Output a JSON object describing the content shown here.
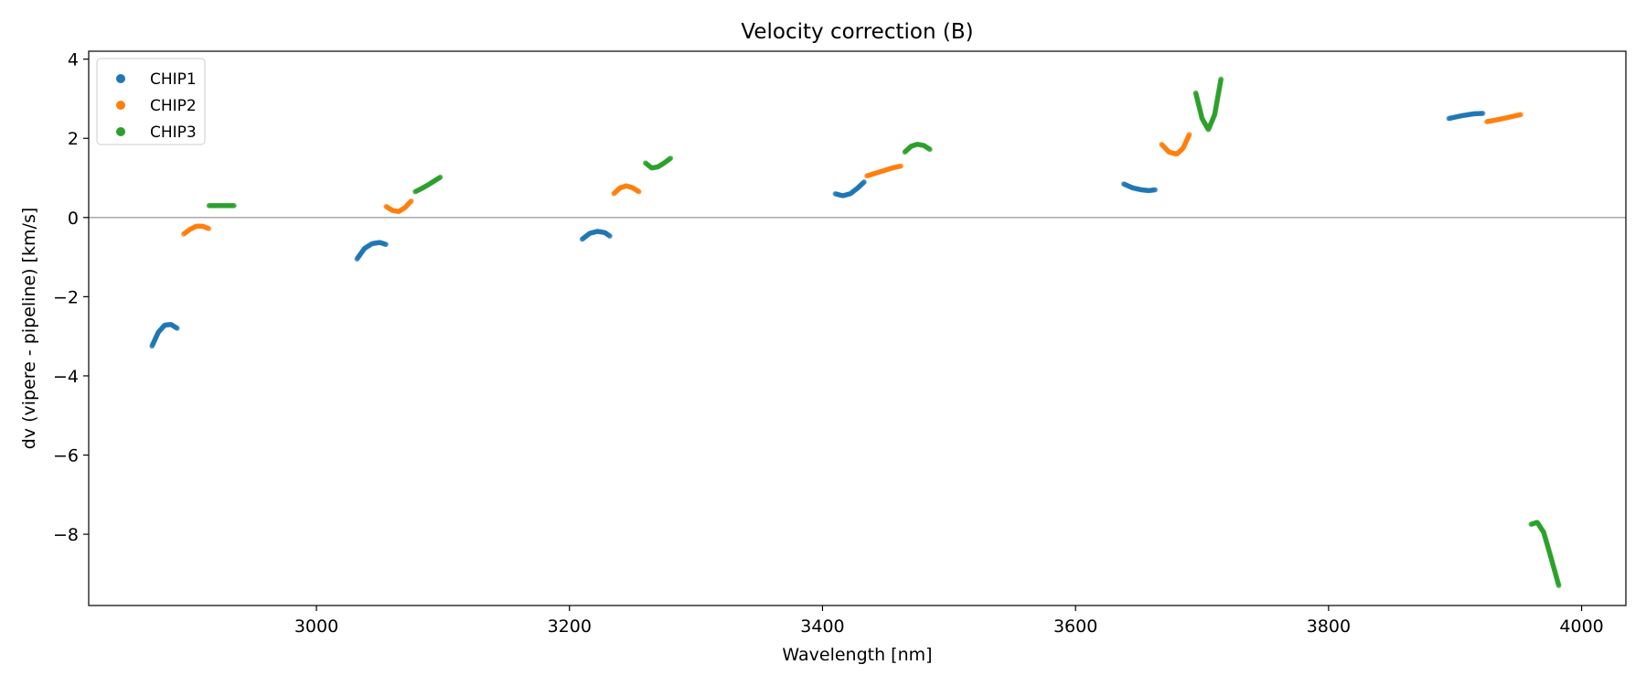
{
  "chart_data": {
    "type": "scatter",
    "title": "Velocity correction (B)",
    "xlabel": "Wavelength [nm]",
    "ylabel": "dv (vipere - pipeline) [km/s]",
    "xlim": [
      2820,
      4035
    ],
    "ylim": [
      -9.8,
      4.2
    ],
    "xticks": [
      3000,
      3200,
      3400,
      3600,
      3800,
      4000
    ],
    "yticks": [
      4,
      2,
      0,
      -2,
      -4,
      -6,
      -8
    ],
    "ytick_labels": [
      "4",
      "2",
      "0",
      "−2",
      "−4",
      "−6",
      "−8"
    ],
    "grid": false,
    "reference_line_y": 0,
    "legend_position": "top-left",
    "series": [
      {
        "name": "CHIP1",
        "color": "#1f77b4",
        "segments": [
          {
            "x": [
              2870,
              2875,
              2880,
              2885,
              2890
            ],
            "y": [
              -3.25,
              -2.9,
              -2.72,
              -2.7,
              -2.8
            ]
          },
          {
            "x": [
              3032,
              3038,
              3044,
              3050,
              3055
            ],
            "y": [
              -1.05,
              -0.78,
              -0.66,
              -0.63,
              -0.68
            ]
          },
          {
            "x": [
              3210,
              3216,
              3222,
              3228,
              3232
            ],
            "y": [
              -0.55,
              -0.4,
              -0.35,
              -0.38,
              -0.47
            ]
          },
          {
            "x": [
              3410,
              3416,
              3422,
              3428,
              3433
            ],
            "y": [
              0.6,
              0.55,
              0.6,
              0.75,
              0.9
            ]
          },
          {
            "x": [
              3638,
              3645,
              3652,
              3658,
              3663
            ],
            "y": [
              0.85,
              0.75,
              0.7,
              0.68,
              0.7
            ]
          },
          {
            "x": [
              3895,
              3905,
              3915,
              3922
            ],
            "y": [
              2.5,
              2.57,
              2.62,
              2.63
            ]
          }
        ]
      },
      {
        "name": "CHIP2",
        "color": "#ff7f0e",
        "segments": [
          {
            "x": [
              2895,
              2900,
              2905,
              2910,
              2915
            ],
            "y": [
              -0.42,
              -0.3,
              -0.22,
              -0.22,
              -0.28
            ]
          },
          {
            "x": [
              3055,
              3060,
              3065,
              3070,
              3075
            ],
            "y": [
              0.28,
              0.18,
              0.15,
              0.25,
              0.42
            ]
          },
          {
            "x": [
              3235,
              3240,
              3245,
              3250,
              3255
            ],
            "y": [
              0.6,
              0.75,
              0.8,
              0.75,
              0.65
            ]
          },
          {
            "x": [
              3435,
              3445,
              3455,
              3462
            ],
            "y": [
              1.05,
              1.15,
              1.25,
              1.3
            ]
          },
          {
            "x": [
              3668,
              3674,
              3680,
              3685,
              3690
            ],
            "y": [
              1.85,
              1.65,
              1.6,
              1.75,
              2.1
            ]
          },
          {
            "x": [
              3925,
              3935,
              3945,
              3952
            ],
            "y": [
              2.42,
              2.48,
              2.55,
              2.6
            ]
          }
        ]
      },
      {
        "name": "CHIP3",
        "color": "#2ca02c",
        "segments": [
          {
            "x": [
              2915,
              2920,
              2925,
              2930,
              2935
            ],
            "y": [
              0.3,
              0.3,
              0.3,
              0.3,
              0.3
            ]
          },
          {
            "x": [
              3078,
              3083,
              3088,
              3093,
              3098
            ],
            "y": [
              0.65,
              0.73,
              0.82,
              0.92,
              1.02
            ]
          },
          {
            "x": [
              3260,
              3265,
              3270,
              3275,
              3280
            ],
            "y": [
              1.38,
              1.25,
              1.28,
              1.38,
              1.5
            ]
          },
          {
            "x": [
              3465,
              3470,
              3475,
              3480,
              3485
            ],
            "y": [
              1.65,
              1.8,
              1.85,
              1.82,
              1.72
            ]
          },
          {
            "x": [
              3695,
              3700,
              3705,
              3710,
              3715
            ],
            "y": [
              3.15,
              2.5,
              2.22,
              2.6,
              3.5
            ]
          },
          {
            "x": [
              3960,
              3965,
              3970,
              3975,
              3982
            ],
            "y": [
              -7.75,
              -7.7,
              -7.95,
              -8.5,
              -9.3
            ]
          }
        ]
      }
    ]
  }
}
